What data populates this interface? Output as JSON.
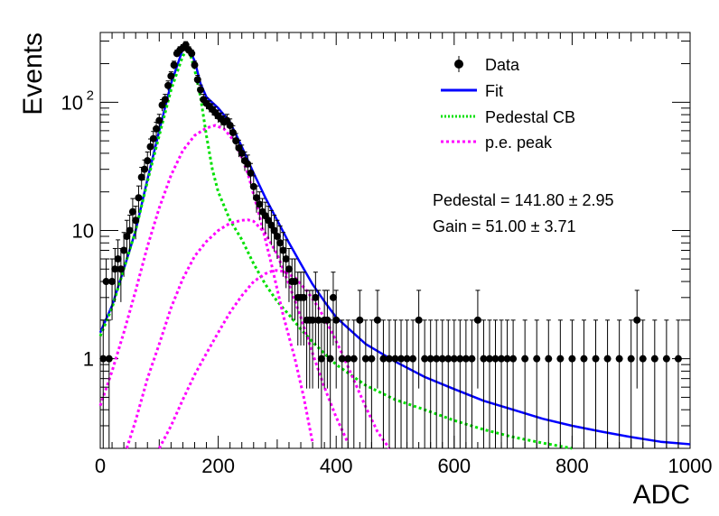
{
  "chart_data": {
    "type": "scatter",
    "xlabel": "ADC",
    "ylabel": "Events",
    "xlim": [
      0,
      1000
    ],
    "ylim": [
      0.2,
      350
    ],
    "y_scale": "log",
    "grid": false,
    "legend_position": "top-right",
    "x_ticks": [
      {
        "value": 0,
        "label": "0"
      },
      {
        "value": 200,
        "label": "200"
      },
      {
        "value": 400,
        "label": "400"
      },
      {
        "value": 600,
        "label": "600"
      },
      {
        "value": 800,
        "label": "800"
      },
      {
        "value": 1000,
        "label": "1000"
      }
    ],
    "y_ticks": [
      {
        "value": 1,
        "label": "1",
        "sup": ""
      },
      {
        "value": 10,
        "label": "10",
        "sup": ""
      },
      {
        "value": 100,
        "label": "10",
        "sup": "2"
      }
    ],
    "legend": [
      {
        "label": "Data",
        "kind": "marker",
        "color": "#000000"
      },
      {
        "label": "Fit",
        "kind": "line",
        "color": "#0000ff"
      },
      {
        "label": "Pedestal CB",
        "kind": "dotted",
        "color": "#00e000"
      },
      {
        "label": "p.e. peak",
        "kind": "dotted",
        "color": "#ff00ff"
      }
    ],
    "annotations": [
      {
        "text": "Pedestal = 141.80 ± 2.95"
      },
      {
        "text": "Gain = 51.00 ± 3.71"
      }
    ],
    "series": [
      {
        "name": "Data",
        "kind": "points_with_errors",
        "color": "#000000",
        "points": [
          [
            5,
            1
          ],
          [
            10,
            4
          ],
          [
            15,
            1
          ],
          [
            20,
            4
          ],
          [
            25,
            5
          ],
          [
            30,
            6
          ],
          [
            35,
            5
          ],
          [
            40,
            7
          ],
          [
            45,
            9
          ],
          [
            50,
            10
          ],
          [
            55,
            14
          ],
          [
            60,
            12
          ],
          [
            65,
            18
          ],
          [
            70,
            26
          ],
          [
            75,
            30
          ],
          [
            80,
            35
          ],
          [
            85,
            45
          ],
          [
            90,
            52
          ],
          [
            95,
            62
          ],
          [
            100,
            72
          ],
          [
            105,
            95
          ],
          [
            110,
            105
          ],
          [
            115,
            135
          ],
          [
            120,
            160
          ],
          [
            125,
            195
          ],
          [
            130,
            240
          ],
          [
            135,
            255
          ],
          [
            140,
            265
          ],
          [
            145,
            280
          ],
          [
            150,
            255
          ],
          [
            155,
            240
          ],
          [
            160,
            195
          ],
          [
            165,
            150
          ],
          [
            170,
            125
          ],
          [
            175,
            105
          ],
          [
            180,
            98
          ],
          [
            185,
            93
          ],
          [
            190,
            88
          ],
          [
            195,
            83
          ],
          [
            200,
            78
          ],
          [
            205,
            74
          ],
          [
            210,
            70
          ],
          [
            215,
            72
          ],
          [
            220,
            66
          ],
          [
            225,
            58
          ],
          [
            230,
            50
          ],
          [
            235,
            44
          ],
          [
            240,
            40
          ],
          [
            245,
            35
          ],
          [
            250,
            33
          ],
          [
            255,
            28
          ],
          [
            260,
            22
          ],
          [
            265,
            18
          ],
          [
            270,
            16
          ],
          [
            275,
            14
          ],
          [
            280,
            13
          ],
          [
            285,
            12
          ],
          [
            290,
            11
          ],
          [
            295,
            10
          ],
          [
            300,
            9
          ],
          [
            305,
            8
          ],
          [
            310,
            7
          ],
          [
            315,
            6
          ],
          [
            320,
            5
          ],
          [
            325,
            4
          ],
          [
            330,
            4
          ],
          [
            335,
            3
          ],
          [
            340,
            3
          ],
          [
            345,
            3
          ],
          [
            350,
            2
          ],
          [
            355,
            2
          ],
          [
            360,
            2
          ],
          [
            365,
            3
          ],
          [
            370,
            2
          ],
          [
            375,
            1
          ],
          [
            380,
            2
          ],
          [
            385,
            2
          ],
          [
            390,
            1
          ],
          [
            395,
            3
          ],
          [
            400,
            2
          ],
          [
            410,
            1
          ],
          [
            420,
            1
          ],
          [
            430,
            1
          ],
          [
            440,
            2
          ],
          [
            450,
            1
          ],
          [
            460,
            1
          ],
          [
            470,
            2
          ],
          [
            480,
            1
          ],
          [
            490,
            1
          ],
          [
            500,
            1
          ],
          [
            510,
            1
          ],
          [
            520,
            1
          ],
          [
            530,
            1
          ],
          [
            540,
            2
          ],
          [
            550,
            1
          ],
          [
            560,
            1
          ],
          [
            570,
            1
          ],
          [
            580,
            1
          ],
          [
            590,
            1
          ],
          [
            600,
            1
          ],
          [
            610,
            1
          ],
          [
            620,
            1
          ],
          [
            630,
            1
          ],
          [
            640,
            2
          ],
          [
            650,
            1
          ],
          [
            660,
            1
          ],
          [
            670,
            1
          ],
          [
            680,
            1
          ],
          [
            690,
            1
          ],
          [
            700,
            1
          ],
          [
            720,
            1
          ],
          [
            740,
            1
          ],
          [
            760,
            1
          ],
          [
            780,
            1
          ],
          [
            800,
            1
          ],
          [
            820,
            1
          ],
          [
            840,
            1
          ],
          [
            860,
            1
          ],
          [
            880,
            1
          ],
          [
            900,
            1
          ],
          [
            910,
            2
          ],
          [
            920,
            1
          ],
          [
            940,
            1
          ],
          [
            960,
            1
          ],
          [
            980,
            1
          ]
        ]
      },
      {
        "name": "Fit",
        "kind": "line",
        "color": "#0000ff",
        "points": [
          [
            0,
            1.6
          ],
          [
            20,
            2.6
          ],
          [
            40,
            5
          ],
          [
            60,
            10
          ],
          [
            80,
            25
          ],
          [
            100,
            60
          ],
          [
            120,
            140
          ],
          [
            140,
            260
          ],
          [
            150,
            265
          ],
          [
            160,
            210
          ],
          [
            170,
            140
          ],
          [
            180,
            110
          ],
          [
            200,
            90
          ],
          [
            220,
            70
          ],
          [
            240,
            45
          ],
          [
            260,
            28
          ],
          [
            280,
            18
          ],
          [
            300,
            12
          ],
          [
            320,
            8
          ],
          [
            340,
            5.5
          ],
          [
            360,
            3.8
          ],
          [
            380,
            2.8
          ],
          [
            400,
            2.1
          ],
          [
            450,
            1.3
          ],
          [
            500,
            0.95
          ],
          [
            550,
            0.72
          ],
          [
            600,
            0.58
          ],
          [
            650,
            0.47
          ],
          [
            700,
            0.4
          ],
          [
            750,
            0.34
          ],
          [
            800,
            0.3
          ],
          [
            850,
            0.27
          ],
          [
            900,
            0.245
          ],
          [
            950,
            0.225
          ],
          [
            1000,
            0.215
          ]
        ]
      },
      {
        "name": "Pedestal CB",
        "kind": "dotted",
        "color": "#00e000",
        "points": [
          [
            0,
            1.5
          ],
          [
            20,
            2.5
          ],
          [
            40,
            5
          ],
          [
            60,
            10
          ],
          [
            80,
            24
          ],
          [
            100,
            55
          ],
          [
            120,
            125
          ],
          [
            140,
            230
          ],
          [
            150,
            260
          ],
          [
            160,
            180
          ],
          [
            170,
            110
          ],
          [
            180,
            55
          ],
          [
            190,
            30
          ],
          [
            200,
            20
          ],
          [
            220,
            12
          ],
          [
            240,
            8.5
          ],
          [
            260,
            5.5
          ],
          [
            280,
            3.8
          ],
          [
            300,
            2.8
          ],
          [
            320,
            2.2
          ],
          [
            340,
            1.7
          ],
          [
            360,
            1.35
          ],
          [
            380,
            1.1
          ],
          [
            400,
            0.9
          ],
          [
            450,
            0.62
          ],
          [
            500,
            0.48
          ],
          [
            550,
            0.4
          ],
          [
            600,
            0.33
          ],
          [
            650,
            0.28
          ],
          [
            700,
            0.245
          ],
          [
            750,
            0.22
          ],
          [
            800,
            0.2
          ]
        ]
      },
      {
        "name": "p.e. peak 1",
        "kind": "dotted",
        "color": "#ff00ff",
        "points": [
          [
            0,
            0.43
          ],
          [
            20,
            0.8
          ],
          [
            40,
            1.6
          ],
          [
            60,
            3.4
          ],
          [
            80,
            7.5
          ],
          [
            100,
            15
          ],
          [
            120,
            27
          ],
          [
            140,
            42
          ],
          [
            160,
            55
          ],
          [
            180,
            63
          ],
          [
            195,
            66
          ],
          [
            210,
            62
          ],
          [
            230,
            48
          ],
          [
            250,
            28
          ],
          [
            270,
            13
          ],
          [
            290,
            5.5
          ],
          [
            310,
            2.2
          ],
          [
            330,
            1
          ],
          [
            345,
            0.5
          ],
          [
            360,
            0.22
          ]
        ]
      },
      {
        "name": "p.e. peak 2",
        "kind": "dotted",
        "color": "#ff00ff",
        "points": [
          [
            45,
            0.2
          ],
          [
            60,
            0.33
          ],
          [
            80,
            0.7
          ],
          [
            100,
            1.3
          ],
          [
            120,
            2.5
          ],
          [
            140,
            4.2
          ],
          [
            160,
            6.3
          ],
          [
            180,
            8.2
          ],
          [
            200,
            10
          ],
          [
            220,
            11.4
          ],
          [
            240,
            12
          ],
          [
            250,
            12.1
          ],
          [
            260,
            11.8
          ],
          [
            280,
            9.5
          ],
          [
            300,
            6.5
          ],
          [
            320,
            3.8
          ],
          [
            340,
            2.1
          ],
          [
            360,
            1.1
          ],
          [
            380,
            0.6
          ],
          [
            400,
            0.35
          ],
          [
            420,
            0.22
          ]
        ]
      },
      {
        "name": "p.e. peak 3",
        "kind": "dotted",
        "color": "#ff00ff",
        "points": [
          [
            100,
            0.2
          ],
          [
            120,
            0.3
          ],
          [
            140,
            0.48
          ],
          [
            160,
            0.75
          ],
          [
            180,
            1.1
          ],
          [
            200,
            1.6
          ],
          [
            220,
            2.3
          ],
          [
            240,
            3.1
          ],
          [
            260,
            4
          ],
          [
            280,
            4.6
          ],
          [
            295,
            4.9
          ],
          [
            310,
            4.8
          ],
          [
            330,
            4.3
          ],
          [
            350,
            3.4
          ],
          [
            370,
            2.5
          ],
          [
            390,
            1.7
          ],
          [
            410,
            1.1
          ],
          [
            430,
            0.68
          ],
          [
            450,
            0.42
          ],
          [
            470,
            0.27
          ],
          [
            490,
            0.2
          ]
        ]
      }
    ]
  }
}
